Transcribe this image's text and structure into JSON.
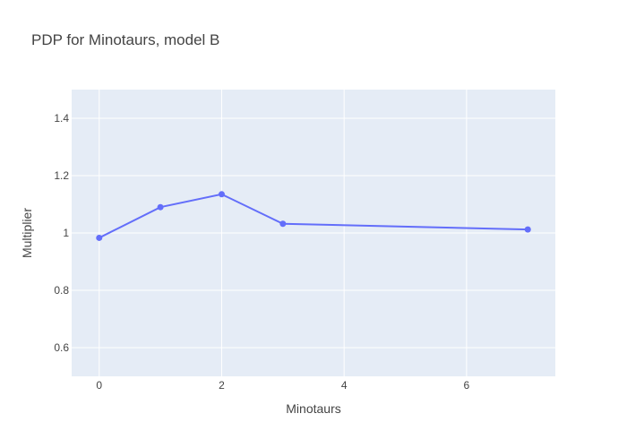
{
  "chart_data": {
    "type": "line",
    "title": "PDP for Minotaurs, model B",
    "xlabel": "Minotaurs",
    "ylabel": "Multiplier",
    "xlim": [
      -0.45,
      7.45
    ],
    "ylim": [
      0.5,
      1.5
    ],
    "x_ticks": [
      0,
      2,
      4,
      6
    ],
    "y_ticks": [
      0.6,
      0.8,
      1,
      1.2,
      1.4
    ],
    "grid": true,
    "series": [
      {
        "x": [
          0,
          1,
          2,
          3,
          7
        ],
        "values": [
          0.983,
          1.09,
          1.135,
          1.032,
          1.012
        ],
        "color": "#636efa",
        "mode": "lines+markers"
      }
    ],
    "colors": {
      "plot_background": "#e5ecf6",
      "grid": "#ffffff",
      "text": "#444444"
    }
  }
}
